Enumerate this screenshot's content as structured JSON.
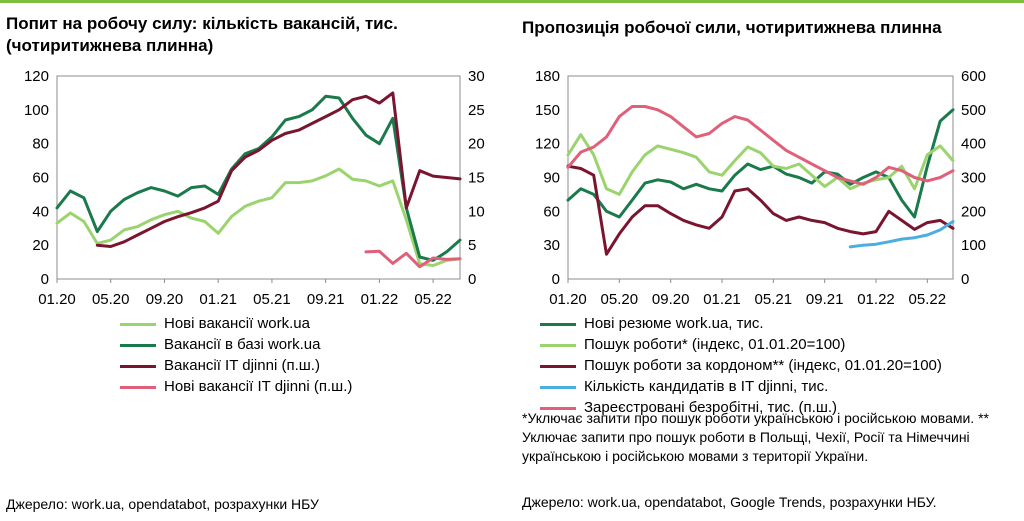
{
  "chart_data": [
    {
      "type": "line",
      "title": "Попит на робочу силу: кількість вакансій, тис. (чотиритижнева плинна)",
      "x_ticks": [
        "01.20",
        "05.20",
        "09.20",
        "01.21",
        "05.21",
        "09.21",
        "01.22",
        "05.22"
      ],
      "xlim": [
        "2020-01",
        "2022-07"
      ],
      "ylim_left": [
        0,
        120
      ],
      "yticks_left": [
        0,
        20,
        40,
        60,
        80,
        100,
        120
      ],
      "ylim_right": [
        0,
        30
      ],
      "yticks_right": [
        0,
        5,
        10,
        15,
        20,
        25,
        30
      ],
      "grid": false,
      "legend_position": "bottom",
      "series": [
        {
          "name": "Нові вакансії work.ua",
          "color": "#9bd46e",
          "axis": "left",
          "x": [
            "2020-01",
            "2020-02",
            "2020-03",
            "2020-04",
            "2020-05",
            "2020-06",
            "2020-07",
            "2020-08",
            "2020-09",
            "2020-10",
            "2020-11",
            "2020-12",
            "2021-01",
            "2021-02",
            "2021-03",
            "2021-04",
            "2021-05",
            "2021-06",
            "2021-07",
            "2021-08",
            "2021-09",
            "2021-10",
            "2021-11",
            "2021-12",
            "2022-01",
            "2022-02",
            "2022-03",
            "2022-04",
            "2022-05",
            "2022-06",
            "2022-07"
          ],
          "y": [
            33,
            39,
            34,
            21,
            23,
            29,
            31,
            35,
            38,
            40,
            36,
            34,
            27,
            37,
            43,
            46,
            48,
            57,
            57,
            58,
            61,
            65,
            59,
            58,
            55,
            58,
            35,
            9,
            8,
            11,
            12
          ]
        },
        {
          "name": "Вакансії в базі work.ua",
          "color": "#1a7a4c",
          "axis": "left",
          "x": [
            "2020-01",
            "2020-02",
            "2020-03",
            "2020-04",
            "2020-05",
            "2020-06",
            "2020-07",
            "2020-08",
            "2020-09",
            "2020-10",
            "2020-11",
            "2020-12",
            "2021-01",
            "2021-02",
            "2021-03",
            "2021-04",
            "2021-05",
            "2021-06",
            "2021-07",
            "2021-08",
            "2021-09",
            "2021-10",
            "2021-11",
            "2021-12",
            "2022-01",
            "2022-02",
            "2022-03",
            "2022-04",
            "2022-05",
            "2022-06",
            "2022-07"
          ],
          "y": [
            42,
            52,
            48,
            28,
            40,
            47,
            51,
            54,
            52,
            49,
            54,
            55,
            50,
            65,
            74,
            77,
            84,
            94,
            96,
            100,
            108,
            107,
            95,
            85,
            80,
            95,
            42,
            13,
            11,
            16,
            23
          ]
        },
        {
          "name": "Вакансії IT djinni (п.ш.)",
          "color": "#7a1530",
          "axis": "right",
          "x": [
            "2020-04",
            "2020-05",
            "2020-06",
            "2020-07",
            "2020-08",
            "2020-09",
            "2020-10",
            "2020-11",
            "2020-12",
            "2021-01",
            "2021-02",
            "2021-03",
            "2021-04",
            "2021-05",
            "2021-06",
            "2021-07",
            "2021-08",
            "2021-09",
            "2021-10",
            "2021-11",
            "2021-12",
            "2022-01",
            "2022-02",
            "2022-03",
            "2022-04",
            "2022-05",
            "2022-06",
            "2022-07"
          ],
          "y": [
            5,
            4.8,
            5.5,
            6.5,
            7.5,
            8.5,
            9.2,
            9.8,
            10.5,
            11.5,
            16,
            18,
            19,
            20.5,
            21.5,
            22,
            23,
            24,
            25,
            26.5,
            27,
            26,
            27.5,
            10.5,
            16,
            15.2,
            15,
            14.8
          ]
        },
        {
          "name": "Нові вакансії IT djinni (п.ш.)",
          "color": "#e0607a",
          "axis": "right",
          "x": [
            "2021-12",
            "2022-01",
            "2022-02",
            "2022-03",
            "2022-04",
            "2022-05",
            "2022-06",
            "2022-07"
          ],
          "y": [
            4,
            4.1,
            2.3,
            3.8,
            1.8,
            3.1,
            2.9,
            3.0
          ]
        }
      ]
    },
    {
      "type": "line",
      "title": "Пропозиція робочої сили, чотиритижнева плинна",
      "x_ticks": [
        "01.20",
        "05.20",
        "09.20",
        "01.21",
        "05.21",
        "09.21",
        "01.22",
        "05.22"
      ],
      "xlim": [
        "2020-01",
        "2022-07"
      ],
      "ylim_left": [
        0,
        180
      ],
      "yticks_left": [
        0,
        30,
        60,
        90,
        120,
        150,
        180
      ],
      "ylim_right": [
        0,
        600
      ],
      "yticks_right": [
        0,
        100,
        200,
        300,
        400,
        500,
        600
      ],
      "grid": false,
      "legend_position": "bottom",
      "series": [
        {
          "name": "Нові резюме work.ua, тис.",
          "color": "#1a7a4c",
          "axis": "left",
          "x": [
            "2020-01",
            "2020-02",
            "2020-03",
            "2020-04",
            "2020-05",
            "2020-06",
            "2020-07",
            "2020-08",
            "2020-09",
            "2020-10",
            "2020-11",
            "2020-12",
            "2021-01",
            "2021-02",
            "2021-03",
            "2021-04",
            "2021-05",
            "2021-06",
            "2021-07",
            "2021-08",
            "2021-09",
            "2021-10",
            "2021-11",
            "2021-12",
            "2022-01",
            "2022-02",
            "2022-03",
            "2022-04",
            "2022-05",
            "2022-06",
            "2022-07"
          ],
          "y": [
            70,
            80,
            75,
            60,
            55,
            70,
            85,
            88,
            86,
            80,
            84,
            80,
            78,
            92,
            102,
            97,
            100,
            93,
            90,
            85,
            95,
            93,
            84,
            90,
            95,
            90,
            70,
            55,
            100,
            140,
            150
          ]
        },
        {
          "name": "Пошук роботи* (індекс, 01.01.20=100)",
          "color": "#9bd46e",
          "axis": "left",
          "x": [
            "2020-01",
            "2020-02",
            "2020-03",
            "2020-04",
            "2020-05",
            "2020-06",
            "2020-07",
            "2020-08",
            "2020-09",
            "2020-10",
            "2020-11",
            "2020-12",
            "2021-01",
            "2021-02",
            "2021-03",
            "2021-04",
            "2021-05",
            "2021-06",
            "2021-07",
            "2021-08",
            "2021-09",
            "2021-10",
            "2021-11",
            "2021-12",
            "2022-01",
            "2022-02",
            "2022-03",
            "2022-04",
            "2022-05",
            "2022-06",
            "2022-07"
          ],
          "y": [
            110,
            128,
            110,
            80,
            75,
            95,
            110,
            118,
            115,
            112,
            108,
            95,
            92,
            105,
            117,
            112,
            100,
            98,
            102,
            92,
            82,
            90,
            80,
            85,
            88,
            90,
            100,
            80,
            110,
            118,
            105
          ]
        },
        {
          "name": "Пошук роботи за кордоном** (індекс, 01.01.20=100)",
          "color": "#7a1530",
          "axis": "left",
          "x": [
            "2020-01",
            "2020-02",
            "2020-03",
            "2020-04",
            "2020-05",
            "2020-06",
            "2020-07",
            "2020-08",
            "2020-09",
            "2020-10",
            "2020-11",
            "2020-12",
            "2021-01",
            "2021-02",
            "2021-03",
            "2021-04",
            "2021-05",
            "2021-06",
            "2021-07",
            "2021-08",
            "2021-09",
            "2021-10",
            "2021-11",
            "2021-12",
            "2022-01",
            "2022-02",
            "2022-03",
            "2022-04",
            "2022-05",
            "2022-06",
            "2022-07"
          ],
          "y": [
            100,
            98,
            92,
            22,
            40,
            55,
            65,
            65,
            58,
            52,
            48,
            45,
            55,
            78,
            80,
            70,
            58,
            52,
            55,
            52,
            50,
            45,
            42,
            40,
            42,
            60,
            52,
            44,
            50,
            52,
            45
          ]
        },
        {
          "name": "Кількість кандидатів в IT djinni, тис.",
          "color": "#4aaee0",
          "axis": "right",
          "x": [
            "2021-11",
            "2021-12",
            "2022-01",
            "2022-02",
            "2022-03",
            "2022-04",
            "2022-05",
            "2022-06",
            "2022-07"
          ],
          "y": [
            95,
            100,
            103,
            110,
            118,
            122,
            130,
            145,
            170
          ]
        },
        {
          "name": "Зареєстровані безробітні, тис. (п.ш.)",
          "color": "#e0607a",
          "axis": "right",
          "x": [
            "2020-01",
            "2020-02",
            "2020-03",
            "2020-04",
            "2020-05",
            "2020-06",
            "2020-07",
            "2020-08",
            "2020-09",
            "2020-10",
            "2020-11",
            "2020-12",
            "2021-01",
            "2021-02",
            "2021-03",
            "2021-04",
            "2021-05",
            "2021-06",
            "2021-07",
            "2021-08",
            "2021-09",
            "2021-10",
            "2021-11",
            "2021-12",
            "2022-01",
            "2022-02",
            "2022-03",
            "2022-04",
            "2022-05",
            "2022-06",
            "2022-07"
          ],
          "y": [
            330,
            375,
            390,
            420,
            480,
            510,
            510,
            500,
            480,
            450,
            420,
            430,
            460,
            480,
            470,
            440,
            410,
            380,
            360,
            340,
            320,
            300,
            290,
            280,
            300,
            330,
            320,
            300,
            290,
            300,
            320
          ]
        }
      ]
    }
  ],
  "left_panel": {
    "title": "Попит на робочу силу: кількість вакансій, тис. (чотиритижнева плинна)",
    "source": "Джерело: work.ua, opendatabot, розрахунки НБУ"
  },
  "right_panel": {
    "title": "Пропозиція робочої сили, чотиритижнева плинна",
    "note": "*Уключає запити про пошук роботи українською і російською мовами. ** Уключає запити про пошук роботи в Польщі, Чехії, Росії та Німеччині українською і російською мовами з території України.",
    "source": "Джерело: work.ua, opendatabot, Google Trends, розрахунки НБУ."
  },
  "colors": {
    "accent_line": "#7fbf3f"
  }
}
